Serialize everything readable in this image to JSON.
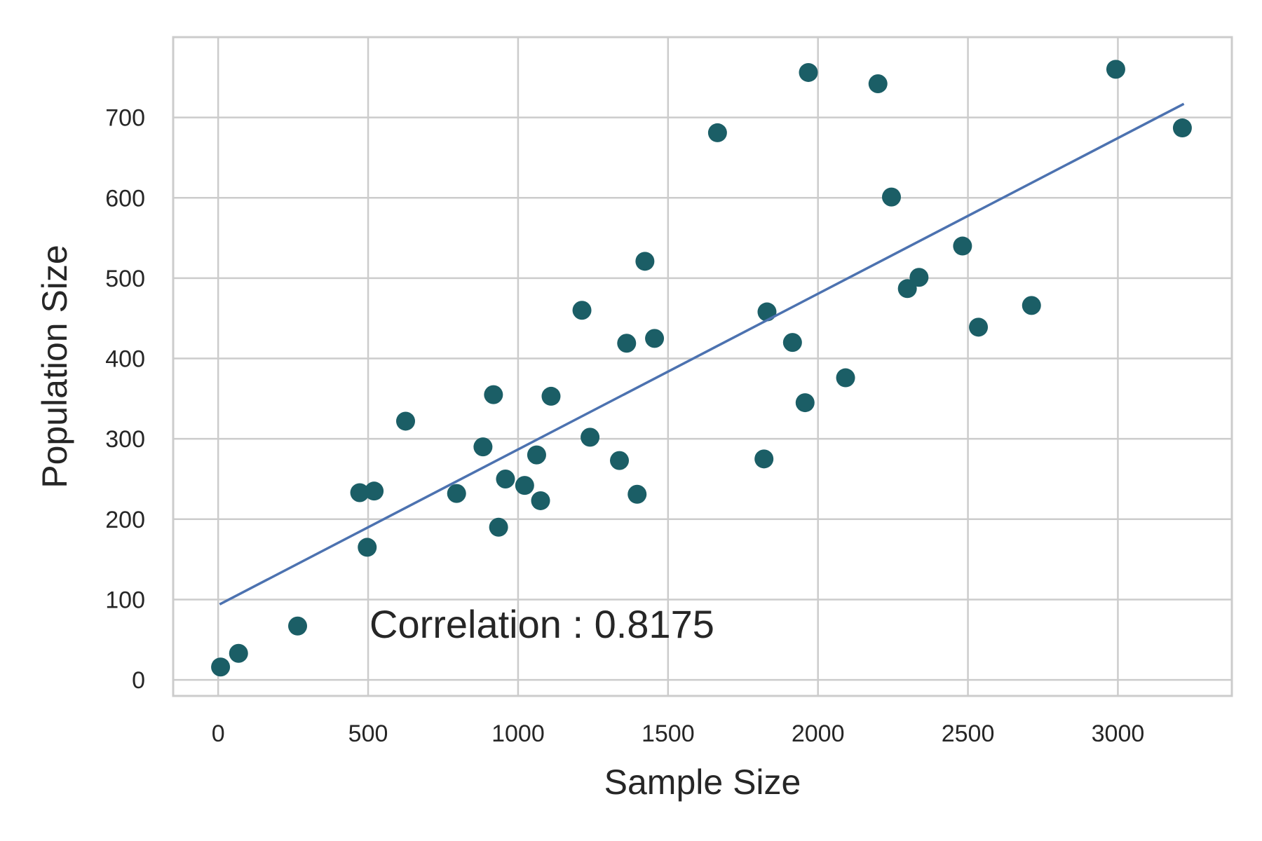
{
  "chart_data": {
    "type": "scatter",
    "title": "",
    "xlabel": "Sample Size",
    "ylabel": "Population Size",
    "xlim": [
      -150,
      3380
    ],
    "ylim": [
      -20,
      800
    ],
    "xticks": [
      0,
      500,
      1000,
      1500,
      2000,
      2500,
      3000
    ],
    "yticks": [
      0,
      100,
      200,
      300,
      400,
      500,
      600,
      700
    ],
    "grid": true,
    "annotation": "Correlation : 0.8175",
    "colors": {
      "points": "#1b5e66",
      "fit_line": "#4c72b0",
      "grid": "#cccccc",
      "frame": "#cccccc"
    },
    "fit_line": {
      "x": [
        5,
        3220
      ],
      "y": [
        94,
        717
      ]
    },
    "points": [
      {
        "x": 8,
        "y": 16
      },
      {
        "x": 68,
        "y": 33
      },
      {
        "x": 265,
        "y": 67
      },
      {
        "x": 472,
        "y": 233
      },
      {
        "x": 497,
        "y": 165
      },
      {
        "x": 520,
        "y": 235
      },
      {
        "x": 625,
        "y": 322
      },
      {
        "x": 795,
        "y": 232
      },
      {
        "x": 883,
        "y": 290
      },
      {
        "x": 918,
        "y": 355
      },
      {
        "x": 935,
        "y": 190
      },
      {
        "x": 958,
        "y": 250
      },
      {
        "x": 1022,
        "y": 242
      },
      {
        "x": 1062,
        "y": 280
      },
      {
        "x": 1075,
        "y": 223
      },
      {
        "x": 1110,
        "y": 353
      },
      {
        "x": 1213,
        "y": 460
      },
      {
        "x": 1240,
        "y": 302
      },
      {
        "x": 1338,
        "y": 273
      },
      {
        "x": 1362,
        "y": 419
      },
      {
        "x": 1397,
        "y": 231
      },
      {
        "x": 1423,
        "y": 521
      },
      {
        "x": 1455,
        "y": 425
      },
      {
        "x": 1665,
        "y": 681
      },
      {
        "x": 1820,
        "y": 275
      },
      {
        "x": 1830,
        "y": 458
      },
      {
        "x": 1915,
        "y": 420
      },
      {
        "x": 1957,
        "y": 345
      },
      {
        "x": 1968,
        "y": 756
      },
      {
        "x": 2092,
        "y": 376
      },
      {
        "x": 2200,
        "y": 742
      },
      {
        "x": 2245,
        "y": 601
      },
      {
        "x": 2298,
        "y": 487
      },
      {
        "x": 2337,
        "y": 501
      },
      {
        "x": 2482,
        "y": 540
      },
      {
        "x": 2535,
        "y": 439
      },
      {
        "x": 2712,
        "y": 466
      },
      {
        "x": 2993,
        "y": 760
      },
      {
        "x": 3215,
        "y": 687
      }
    ]
  }
}
